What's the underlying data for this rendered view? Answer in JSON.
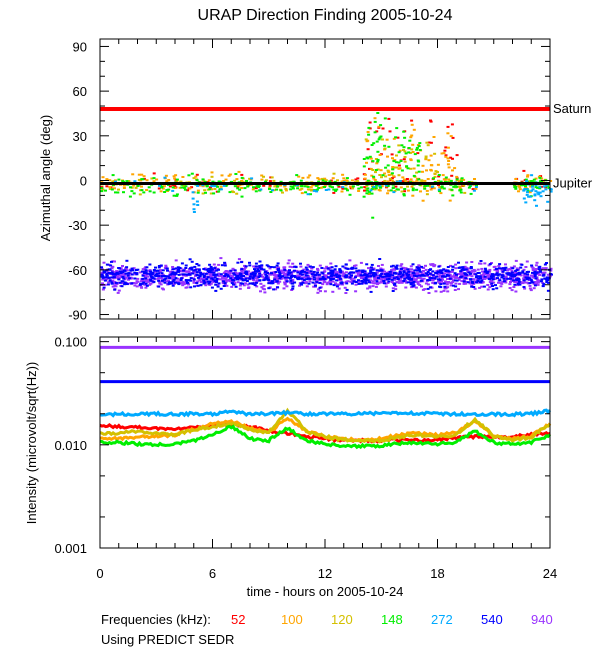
{
  "chart_data": [
    {
      "type": "scatter",
      "title": "URAP Direction Finding  2005-10-24",
      "ylabel": "Azimuthal angle (deg)",
      "xlim": [
        0,
        24
      ],
      "ylim": [
        -93,
        95
      ],
      "yticks": [
        90,
        60,
        30,
        0,
        -30,
        -60,
        -90
      ],
      "yticklabels": [
        "90",
        "60",
        "30",
        "0",
        "-30",
        "-60",
        "-90"
      ],
      "reference_lines": [
        {
          "label": "Saturn",
          "y": 48,
          "color": "#ff0000"
        },
        {
          "label": "Jupiter",
          "y": -2,
          "color": "#000000"
        }
      ],
      "series": [
        {
          "name": "52",
          "color": "#ff0000",
          "clusters": [
            {
              "x0": 0,
              "x1": 20,
              "mean": -2,
              "sd": 3,
              "n": 80
            },
            {
              "x0": 14,
              "x1": 19,
              "mean": 20,
              "sd": 15,
              "n": 40
            },
            {
              "x0": 22,
              "x1": 24,
              "mean": 0,
              "sd": 3,
              "n": 15
            }
          ]
        },
        {
          "name": "100",
          "color": "#ffa500",
          "clusters": [
            {
              "x0": 0,
              "x1": 20,
              "mean": -1,
              "sd": 3,
              "n": 200
            },
            {
              "x0": 14,
              "x1": 19,
              "mean": 12,
              "sd": 12,
              "n": 80
            },
            {
              "x0": 22,
              "x1": 24,
              "mean": -1,
              "sd": 3,
              "n": 30
            }
          ]
        },
        {
          "name": "120",
          "color": "#d4c000",
          "clusters": [
            {
              "x0": 0,
              "x1": 20,
              "mean": -2,
              "sd": 3,
              "n": 120
            },
            {
              "x0": 14,
              "x1": 18,
              "mean": 10,
              "sd": 10,
              "n": 40
            }
          ]
        },
        {
          "name": "148",
          "color": "#00ee00",
          "clusters": [
            {
              "x0": 0,
              "x1": 20,
              "mean": -3,
              "sd": 3,
              "n": 250
            },
            {
              "x0": 14,
              "x1": 17,
              "mean": 15,
              "sd": 14,
              "n": 70
            },
            {
              "x0": 22,
              "x1": 24,
              "mean": -2,
              "sd": 3,
              "n": 40
            }
          ]
        },
        {
          "name": "272",
          "color": "#00aaff",
          "clusters": [
            {
              "x0": 0,
              "x1": 20,
              "mean": -3,
              "sd": 3,
              "n": 40
            },
            {
              "x0": 22.5,
              "x1": 24,
              "mean": -5,
              "sd": 4,
              "n": 40
            },
            {
              "x0": 4.8,
              "x1": 5.2,
              "mean": -15,
              "sd": 8,
              "n": 8
            }
          ]
        },
        {
          "name": "540",
          "color": "#0000ff",
          "clusters": [
            {
              "x0": 0,
              "x1": 24,
              "mean": -63,
              "sd": 4,
              "n": 900
            }
          ]
        },
        {
          "name": "940",
          "color": "#9933ff",
          "clusters": [
            {
              "x0": 0,
              "x1": 24,
              "mean": -64,
              "sd": 4,
              "n": 1400
            }
          ]
        }
      ]
    },
    {
      "type": "line",
      "ylabel": "Intensity (microvolt/sqrt(Hz))",
      "xlabel": "time - hours on 2005-10-24",
      "xlim": [
        0,
        24
      ],
      "ylim": [
        0.001,
        0.1
      ],
      "yscale": "log",
      "xticks": [
        0,
        6,
        12,
        18,
        24
      ],
      "xticklabels": [
        "0",
        "6",
        "12",
        "18",
        "24"
      ],
      "yticks": [
        0.1,
        0.01,
        0.001
      ],
      "yticklabels": [
        "0.100",
        "0.010",
        "0.001"
      ],
      "x": [
        0,
        1,
        2,
        3,
        4,
        5,
        6,
        7,
        8,
        9,
        10,
        11,
        12,
        13,
        14,
        15,
        16,
        17,
        18,
        19,
        20,
        21,
        22,
        23,
        24
      ],
      "series": [
        {
          "name": "52",
          "color": "#ff0000",
          "values": [
            0.0155,
            0.015,
            0.0148,
            0.0145,
            0.0142,
            0.015,
            0.0155,
            0.016,
            0.015,
            0.0135,
            0.013,
            0.012,
            0.0115,
            0.011,
            0.011,
            0.011,
            0.0112,
            0.011,
            0.0112,
            0.0118,
            0.012,
            0.0118,
            0.012,
            0.0125,
            0.013
          ]
        },
        {
          "name": "100",
          "color": "#ffa500",
          "values": [
            0.0115,
            0.0115,
            0.012,
            0.012,
            0.0125,
            0.014,
            0.016,
            0.017,
            0.0145,
            0.013,
            0.018,
            0.0135,
            0.012,
            0.0115,
            0.011,
            0.0115,
            0.0125,
            0.013,
            0.0125,
            0.013,
            0.017,
            0.012,
            0.0115,
            0.012,
            0.016
          ]
        },
        {
          "name": "120",
          "color": "#d4c000",
          "values": [
            0.0128,
            0.013,
            0.0135,
            0.013,
            0.0125,
            0.014,
            0.015,
            0.016,
            0.014,
            0.013,
            0.021,
            0.0135,
            0.012,
            0.0112,
            0.011,
            0.011,
            0.012,
            0.0125,
            0.012,
            0.0125,
            0.0175,
            0.012,
            0.0112,
            0.0118,
            0.016
          ]
        },
        {
          "name": "148",
          "color": "#00ee00",
          "values": [
            0.0105,
            0.0105,
            0.0102,
            0.01,
            0.0101,
            0.011,
            0.0125,
            0.015,
            0.0115,
            0.011,
            0.0145,
            0.011,
            0.0102,
            0.0098,
            0.0097,
            0.0098,
            0.0103,
            0.0105,
            0.0102,
            0.0106,
            0.0135,
            0.0105,
            0.0102,
            0.0106,
            0.0125
          ]
        },
        {
          "name": "272",
          "color": "#00aaff",
          "values": [
            0.0195,
            0.0198,
            0.0198,
            0.02,
            0.0198,
            0.02,
            0.0198,
            0.021,
            0.0198,
            0.02,
            0.0205,
            0.02,
            0.02,
            0.02,
            0.02,
            0.0202,
            0.0205,
            0.0202,
            0.02,
            0.0198,
            0.0198,
            0.0198,
            0.0198,
            0.02,
            0.0215
          ]
        },
        {
          "name": "540",
          "color": "#0000ff",
          "values": [
            0.041,
            0.041,
            0.041,
            0.041,
            0.041,
            0.041,
            0.041,
            0.041,
            0.041,
            0.041,
            0.041,
            0.041,
            0.041,
            0.041,
            0.041,
            0.041,
            0.041,
            0.041,
            0.041,
            0.041,
            0.041,
            0.041,
            0.041,
            0.041,
            0.041
          ]
        },
        {
          "name": "940",
          "color": "#9933ff",
          "values": [
            0.088,
            0.088,
            0.088,
            0.088,
            0.088,
            0.088,
            0.088,
            0.088,
            0.088,
            0.088,
            0.088,
            0.088,
            0.088,
            0.088,
            0.088,
            0.088,
            0.088,
            0.088,
            0.088,
            0.088,
            0.088,
            0.088,
            0.088,
            0.088,
            0.088
          ]
        }
      ]
    }
  ],
  "legend": {
    "label": "Frequencies (kHz):",
    "items": [
      {
        "label": "52",
        "color": "#ff0000"
      },
      {
        "label": "100",
        "color": "#ffa500"
      },
      {
        "label": "120",
        "color": "#d4c000"
      },
      {
        "label": "148",
        "color": "#00ee00"
      },
      {
        "label": "272",
        "color": "#00aaff"
      },
      {
        "label": "540",
        "color": "#0000ff"
      },
      {
        "label": "940",
        "color": "#9933ff"
      }
    ]
  },
  "source_note": "Using PREDICT SEDR"
}
